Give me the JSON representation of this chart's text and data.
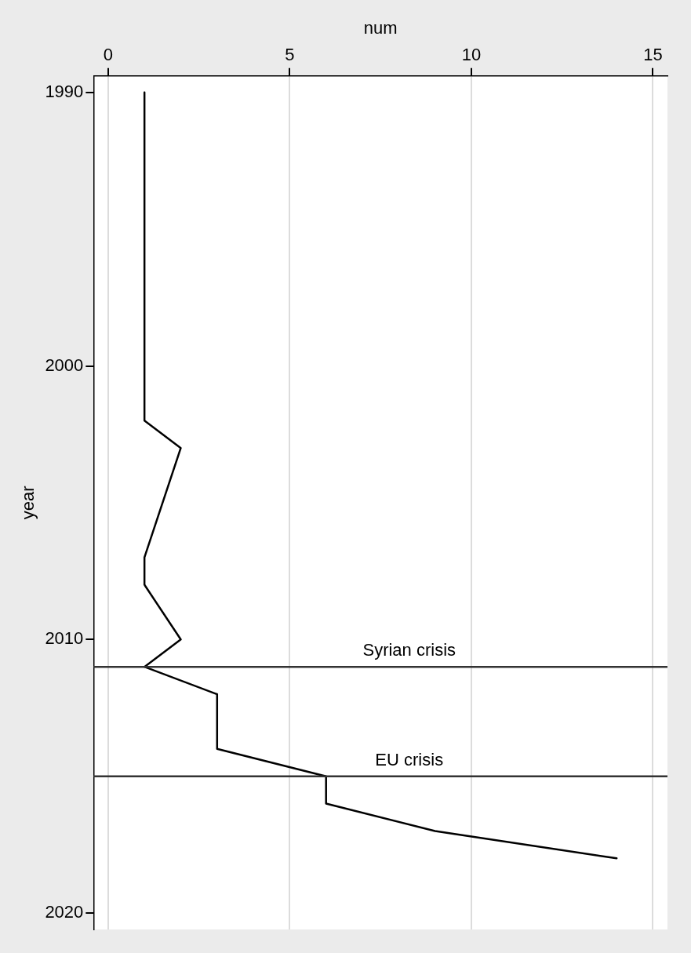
{
  "chart_data": {
    "type": "line",
    "xlabel": "num",
    "ylabel": "year",
    "series": [
      {
        "color": "#000000",
        "x": [
          1,
          1,
          2,
          1,
          1,
          2,
          1,
          3,
          3,
          6,
          6,
          9,
          14
        ],
        "values": [
          1990,
          2002,
          2003,
          2007,
          2008,
          2010,
          2011,
          2012,
          2014,
          2015,
          2016,
          2017,
          2018
        ]
      }
    ],
    "xlim": [
      -0.4,
      15.4
    ],
    "xticks": [
      0,
      5,
      10,
      15
    ],
    "ylim": [
      2020.6,
      1989.4
    ],
    "yticks": [
      1990,
      2000,
      2010,
      2020
    ],
    "grid": "x",
    "legend": false,
    "marker": "none",
    "line_style": "solid",
    "ref_lines": [
      {
        "axis": "y",
        "value": 2011,
        "color": "#333333",
        "label": "Syrian crisis"
      },
      {
        "axis": "y",
        "value": 2015,
        "color": "#333333",
        "label": "EU crisis"
      }
    ]
  }
}
